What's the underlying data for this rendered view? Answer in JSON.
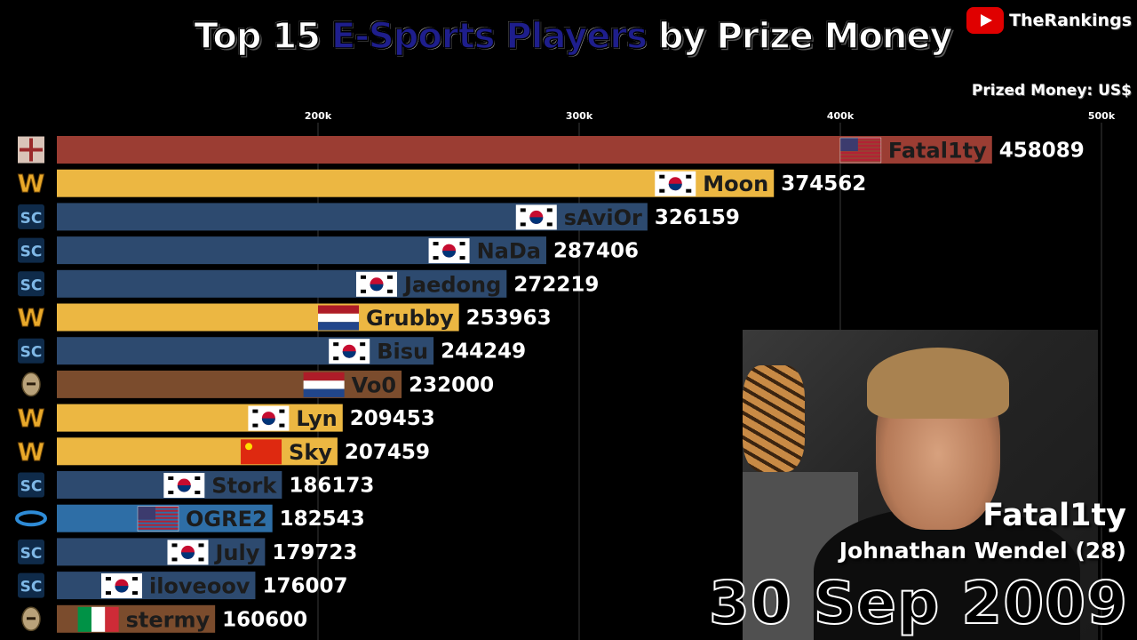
{
  "header": {
    "title_pre": "Top 15 ",
    "title_highlight": "E-Sports Players",
    "title_post": " by Prize Money",
    "channel": "TheRankings",
    "unit_label": "Prized Money: US$"
  },
  "colors": {
    "starcraft": "#2d4a6f",
    "warcraft": "#ecb742",
    "quake": "#9b3d33",
    "aoe": "#7b4c2d",
    "halo": "#2e6ea6"
  },
  "chart_data": {
    "type": "bar",
    "orientation": "horizontal",
    "title": "Top 15 E-Sports Players by Prize Money",
    "xlabel": "Prized Money: US$",
    "xlim": [
      100000,
      520000
    ],
    "x_ticks": [
      200000,
      300000,
      400000,
      500000
    ],
    "x_tick_labels": [
      "200k",
      "300k",
      "400k",
      "500k"
    ],
    "grid": true,
    "bars": [
      {
        "name": "Fatal1ty",
        "value": 458089,
        "value_label": "458089",
        "game": "quake",
        "flag": "us"
      },
      {
        "name": "Moon",
        "value": 374562,
        "value_label": "374562",
        "game": "warcraft",
        "flag": "kr"
      },
      {
        "name": "sAviOr",
        "value": 326159,
        "value_label": "326159",
        "game": "starcraft",
        "flag": "kr"
      },
      {
        "name": "NaDa",
        "value": 287406,
        "value_label": "287406",
        "game": "starcraft",
        "flag": "kr"
      },
      {
        "name": "Jaedong",
        "value": 272219,
        "value_label": "272219",
        "game": "starcraft",
        "flag": "kr"
      },
      {
        "name": "Grubby",
        "value": 253963,
        "value_label": "253963",
        "game": "warcraft",
        "flag": "nl"
      },
      {
        "name": "Bisu",
        "value": 244249,
        "value_label": "244249",
        "game": "starcraft",
        "flag": "kr"
      },
      {
        "name": "Vo0",
        "value": 232000,
        "value_label": "232000",
        "game": "aoe",
        "flag": "nl"
      },
      {
        "name": "Lyn",
        "value": 209453,
        "value_label": "209453",
        "game": "warcraft",
        "flag": "kr"
      },
      {
        "name": "Sky",
        "value": 207459,
        "value_label": "207459",
        "game": "warcraft",
        "flag": "cn"
      },
      {
        "name": "Stork",
        "value": 186173,
        "value_label": "186173",
        "game": "starcraft",
        "flag": "kr"
      },
      {
        "name": "OGRE2",
        "value": 182543,
        "value_label": "182543",
        "game": "halo",
        "flag": "us"
      },
      {
        "name": "July",
        "value": 179723,
        "value_label": "179723",
        "game": "starcraft",
        "flag": "kr"
      },
      {
        "name": "iloveoov",
        "value": 176007,
        "value_label": "176007",
        "game": "starcraft",
        "flag": "kr"
      },
      {
        "name": "stermy",
        "value": 160600,
        "value_label": "160600",
        "game": "aoe",
        "flag": "it"
      }
    ]
  },
  "featured": {
    "player": "Fatal1ty",
    "real_name": "Johnathan Wendel (28)",
    "date": "30 Sep 2009"
  }
}
